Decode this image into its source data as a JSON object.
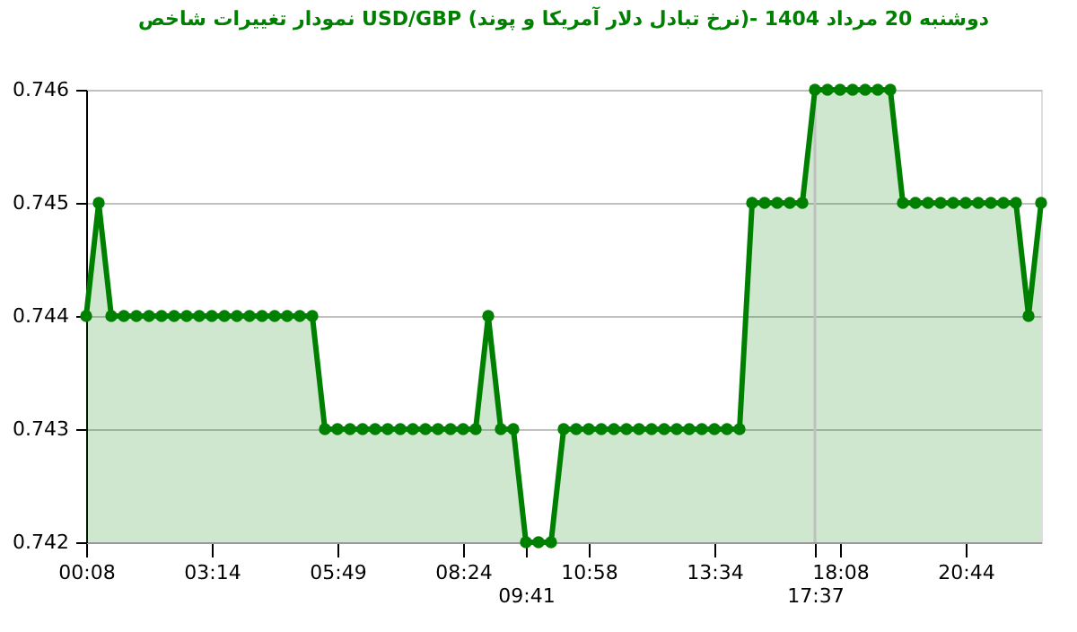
{
  "chart_data": {
    "type": "area",
    "title": "نمودار تغییرات شاخص USD/GBP (نرخ تبادل دلار آمریکا و پوند)-  دوشنبه  20 مرداد 1404",
    "categories": [
      "00:08",
      null,
      null,
      null,
      null,
      null,
      null,
      null,
      null,
      null,
      "03:14",
      null,
      null,
      null,
      null,
      null,
      null,
      null,
      null,
      null,
      "05:49",
      null,
      null,
      null,
      null,
      null,
      null,
      null,
      null,
      null,
      "08:24",
      null,
      null,
      null,
      null,
      "09:41",
      null,
      null,
      null,
      null,
      "10:58",
      null,
      null,
      null,
      null,
      null,
      null,
      null,
      null,
      null,
      "13:34",
      null,
      null,
      null,
      null,
      null,
      null,
      null,
      "17:37",
      null,
      "18:08",
      null,
      null,
      null,
      null,
      null,
      null,
      null,
      null,
      null,
      "20:44",
      null,
      null,
      null,
      null,
      null,
      null
    ],
    "series": [
      {
        "color": "#008000",
        "values": [
          0.744,
          0.745,
          0.744,
          0.744,
          0.744,
          0.744,
          0.744,
          0.744,
          0.744,
          0.744,
          0.744,
          0.744,
          0.744,
          0.744,
          0.744,
          0.744,
          0.744,
          0.744,
          0.744,
          0.743,
          0.743,
          0.743,
          0.743,
          0.743,
          0.743,
          0.743,
          0.743,
          0.743,
          0.743,
          0.743,
          0.743,
          0.743,
          0.744,
          0.743,
          0.743,
          0.742,
          0.742,
          0.742,
          0.743,
          0.743,
          0.743,
          0.743,
          0.743,
          0.743,
          0.743,
          0.743,
          0.743,
          0.743,
          0.743,
          0.743,
          0.743,
          0.743,
          0.743,
          0.745,
          0.745,
          0.745,
          0.745,
          0.745,
          0.746,
          0.746,
          0.746,
          0.746,
          0.746,
          0.746,
          0.746,
          0.745,
          0.745,
          0.745,
          0.745,
          0.745,
          0.745,
          0.745,
          0.745,
          0.745,
          0.745,
          0.744,
          0.745
        ]
      }
    ],
    "ylim": [
      0.742,
      0.746
    ],
    "yticks": [
      0.742,
      0.743,
      0.744,
      0.745,
      0.746
    ],
    "grid": "y",
    "marker": "circle",
    "ref_lines": [
      {
        "axis": "x",
        "value": "17:37",
        "color": "#c0c0c0"
      }
    ]
  }
}
